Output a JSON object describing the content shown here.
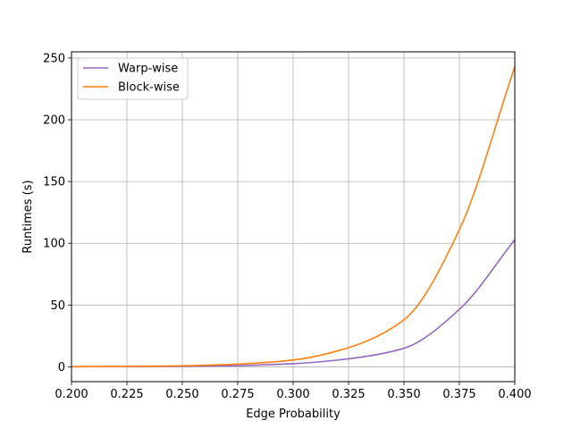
{
  "chart_data": {
    "type": "line",
    "title": "",
    "xlabel": "Edge Probability",
    "ylabel": "Runtimes (s)",
    "xlim": [
      0.2,
      0.4
    ],
    "ylim": [
      -12,
      255
    ],
    "x_ticks": [
      0.2,
      0.225,
      0.25,
      0.275,
      0.3,
      0.325,
      0.35,
      0.375,
      0.4
    ],
    "x_tick_labels": [
      "0.200",
      "0.225",
      "0.250",
      "0.275",
      "0.300",
      "0.325",
      "0.350",
      "0.375",
      "0.400"
    ],
    "y_ticks": [
      0,
      50,
      100,
      150,
      200,
      250
    ],
    "y_tick_labels": [
      "0",
      "50",
      "100",
      "150",
      "200",
      "250"
    ],
    "grid": true,
    "legend_position": "top-left",
    "series": [
      {
        "name": "Warp-wise",
        "color": "#9467bd",
        "x": [
          0.2,
          0.225,
          0.25,
          0.275,
          0.3,
          0.325,
          0.35,
          0.375,
          0.4
        ],
        "values": [
          0.1,
          0.2,
          0.4,
          1.0,
          2.5,
          6.5,
          15.0,
          46.5,
          103.0
        ]
      },
      {
        "name": "Block-wise",
        "color": "#ff7f0e",
        "x": [
          0.2,
          0.225,
          0.25,
          0.275,
          0.3,
          0.325,
          0.35,
          0.375,
          0.4
        ],
        "values": [
          0.2,
          0.3,
          0.8,
          2.2,
          5.5,
          15.5,
          38.0,
          111.0,
          243.0
        ]
      }
    ]
  }
}
